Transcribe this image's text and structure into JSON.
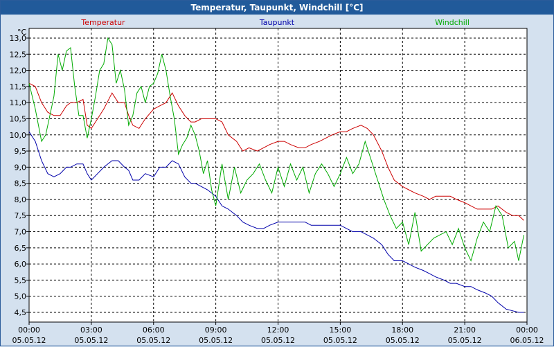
{
  "window": {
    "title": "Temperatur, Taupunkt, Windchill [°C]"
  },
  "chart_data": {
    "type": "line",
    "title": "Temperatur, Taupunkt, Windchill [°C]",
    "ylabel": "°C",
    "xlabel": "",
    "ylim": [
      4.2,
      13.3
    ],
    "xlim": [
      0,
      24
    ],
    "grid": true,
    "y_ticks": [
      4.5,
      5.0,
      5.5,
      6.0,
      6.5,
      7.0,
      7.5,
      8.0,
      8.5,
      9.0,
      9.5,
      10.0,
      10.5,
      11.0,
      11.5,
      12.0,
      12.5,
      13.0
    ],
    "y_tick_labels": [
      "4,5",
      "5,0",
      "5,5",
      "6,0",
      "6,5",
      "7,0",
      "7,5",
      "8,0",
      "8,5",
      "9,0",
      "9,5",
      "10,0",
      "10,5",
      "11,0",
      "11,5",
      "12,0",
      "12,5",
      "13,0"
    ],
    "x_ticks": [
      0,
      3,
      6,
      9,
      12,
      15,
      18,
      21,
      24
    ],
    "x_tick_time_labels": [
      "00:00",
      "03:00",
      "06:00",
      "09:00",
      "12:00",
      "15:00",
      "18:00",
      "21:00",
      "00:00"
    ],
    "x_tick_date_labels": [
      "05.05.12",
      "05.05.12",
      "05.05.12",
      "05.05.12",
      "05.05.12",
      "05.05.12",
      "05.05.12",
      "05.05.12",
      "06.05.12"
    ],
    "series": [
      {
        "name": "Temperatur",
        "color": "#cc0000",
        "x": [
          0,
          0.3,
          0.6,
          0.9,
          1.2,
          1.5,
          1.8,
          2.0,
          2.3,
          2.6,
          2.8,
          3.0,
          3.3,
          3.6,
          4.0,
          4.3,
          4.6,
          4.8,
          5.0,
          5.3,
          5.6,
          6.0,
          6.3,
          6.6,
          6.9,
          7.2,
          7.5,
          7.8,
          8.0,
          8.3,
          8.6,
          9.0,
          9.3,
          9.6,
          10.0,
          10.3,
          10.6,
          11.0,
          11.3,
          11.6,
          12.0,
          12.3,
          12.6,
          13.0,
          13.3,
          13.6,
          14.0,
          14.3,
          14.6,
          15.0,
          15.3,
          15.6,
          16.0,
          16.3,
          16.6,
          17.0,
          17.3,
          17.6,
          18.0,
          18.3,
          18.6,
          19.0,
          19.3,
          19.6,
          20.0,
          20.3,
          20.6,
          21.0,
          21.3,
          21.6,
          22.0,
          22.3,
          22.6,
          23.0,
          23.3,
          23.6,
          23.85
        ],
        "values": [
          11.6,
          11.5,
          11.0,
          10.7,
          10.6,
          10.6,
          10.9,
          11.0,
          11.0,
          11.1,
          10.3,
          10.2,
          10.5,
          10.8,
          11.3,
          11.0,
          11.0,
          10.6,
          10.3,
          10.2,
          10.5,
          10.8,
          10.9,
          11.0,
          11.3,
          10.9,
          10.6,
          10.4,
          10.4,
          10.5,
          10.5,
          10.5,
          10.4,
          10.0,
          9.8,
          9.5,
          9.6,
          9.5,
          9.6,
          9.7,
          9.8,
          9.8,
          9.7,
          9.6,
          9.6,
          9.7,
          9.8,
          9.9,
          10.0,
          10.1,
          10.1,
          10.2,
          10.3,
          10.2,
          10.0,
          9.5,
          9.0,
          8.6,
          8.4,
          8.3,
          8.2,
          8.1,
          8.0,
          8.1,
          8.1,
          8.1,
          8.0,
          7.9,
          7.8,
          7.7,
          7.7,
          7.7,
          7.8,
          7.6,
          7.5,
          7.5,
          7.35
        ]
      },
      {
        "name": "Taupunkt",
        "color": "#0000aa",
        "x": [
          0,
          0.3,
          0.6,
          0.9,
          1.2,
          1.5,
          1.8,
          2.0,
          2.3,
          2.6,
          2.8,
          3.0,
          3.3,
          3.6,
          4.0,
          4.3,
          4.6,
          4.8,
          5.0,
          5.3,
          5.6,
          6.0,
          6.3,
          6.6,
          6.9,
          7.2,
          7.5,
          7.8,
          8.0,
          8.3,
          8.6,
          9.0,
          9.3,
          9.6,
          10.0,
          10.3,
          10.6,
          11.0,
          11.3,
          11.6,
          12.0,
          12.3,
          12.6,
          13.0,
          13.3,
          13.6,
          14.0,
          14.3,
          14.6,
          15.0,
          15.3,
          15.6,
          16.0,
          16.3,
          16.6,
          17.0,
          17.3,
          17.6,
          18.0,
          18.3,
          18.6,
          19.0,
          19.3,
          19.6,
          20.0,
          20.3,
          20.6,
          21.0,
          21.3,
          21.6,
          22.0,
          22.3,
          22.6,
          23.0,
          23.3,
          23.6,
          23.85
        ],
        "values": [
          10.1,
          9.8,
          9.2,
          8.8,
          8.7,
          8.8,
          9.0,
          9.0,
          9.1,
          9.1,
          8.8,
          8.6,
          8.8,
          9.0,
          9.2,
          9.2,
          9.0,
          8.9,
          8.6,
          8.6,
          8.8,
          8.7,
          9.0,
          9.0,
          9.2,
          9.1,
          8.7,
          8.5,
          8.5,
          8.4,
          8.3,
          8.1,
          7.8,
          7.7,
          7.5,
          7.3,
          7.2,
          7.1,
          7.1,
          7.2,
          7.3,
          7.3,
          7.3,
          7.3,
          7.3,
          7.2,
          7.2,
          7.2,
          7.2,
          7.2,
          7.1,
          7.0,
          7.0,
          6.9,
          6.8,
          6.6,
          6.3,
          6.1,
          6.1,
          6.0,
          5.9,
          5.8,
          5.7,
          5.6,
          5.5,
          5.4,
          5.4,
          5.3,
          5.3,
          5.2,
          5.1,
          5.0,
          4.8,
          4.6,
          4.55,
          4.5,
          4.5
        ]
      },
      {
        "name": "Windchill",
        "color": "#00aa00",
        "x": [
          0,
          0.3,
          0.6,
          0.8,
          1.0,
          1.2,
          1.4,
          1.6,
          1.8,
          2.0,
          2.2,
          2.4,
          2.6,
          2.8,
          3.0,
          3.2,
          3.4,
          3.6,
          3.8,
          4.0,
          4.2,
          4.4,
          4.6,
          4.8,
          5.0,
          5.2,
          5.4,
          5.6,
          5.8,
          6.0,
          6.2,
          6.4,
          6.6,
          6.8,
          7.0,
          7.2,
          7.4,
          7.6,
          7.8,
          8.0,
          8.2,
          8.4,
          8.6,
          8.8,
          9.0,
          9.3,
          9.6,
          9.9,
          10.2,
          10.5,
          10.8,
          11.1,
          11.4,
          11.7,
          12.0,
          12.3,
          12.6,
          12.9,
          13.2,
          13.5,
          13.8,
          14.1,
          14.4,
          14.7,
          15.0,
          15.3,
          15.6,
          15.9,
          16.2,
          16.5,
          16.8,
          17.1,
          17.4,
          17.7,
          18.0,
          18.3,
          18.6,
          18.9,
          19.2,
          19.5,
          19.8,
          20.1,
          20.4,
          20.7,
          21.0,
          21.3,
          21.6,
          21.9,
          22.2,
          22.5,
          22.8,
          23.1,
          23.4,
          23.6,
          23.85
        ],
        "values": [
          11.6,
          10.8,
          9.8,
          10.0,
          10.6,
          11.2,
          12.5,
          12.0,
          12.6,
          12.7,
          11.5,
          10.6,
          10.6,
          9.9,
          10.5,
          11.2,
          12.0,
          12.2,
          13.0,
          12.8,
          11.6,
          12.0,
          11.4,
          10.3,
          10.6,
          11.3,
          11.5,
          11.0,
          11.5,
          11.6,
          11.9,
          12.5,
          12.0,
          11.2,
          10.5,
          9.4,
          9.7,
          9.9,
          10.3,
          10.0,
          9.5,
          8.8,
          9.2,
          8.3,
          7.8,
          9.1,
          8.0,
          9.0,
          8.2,
          8.6,
          8.8,
          9.1,
          8.6,
          8.2,
          9.0,
          8.4,
          9.1,
          8.6,
          9.0,
          8.2,
          8.8,
          9.1,
          8.8,
          8.4,
          8.8,
          9.3,
          8.8,
          9.1,
          9.8,
          9.2,
          8.6,
          8.0,
          7.5,
          7.1,
          7.3,
          6.6,
          7.6,
          6.4,
          6.6,
          6.8,
          6.9,
          7.0,
          6.6,
          7.1,
          6.5,
          6.1,
          6.8,
          7.3,
          7.0,
          7.8,
          7.5,
          6.5,
          6.7,
          6.1,
          6.9
        ]
      }
    ]
  }
}
